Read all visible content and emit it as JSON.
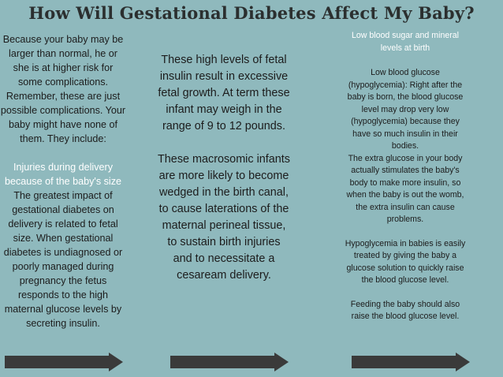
{
  "title": "How Will Gestational Diabetes Affect My Baby?",
  "column1": {
    "intro": "Because your baby may be larger than normal, he or she is at higher risk for some complications. Remember, these are just possible complications. Your baby might have none of them. They include:",
    "heading": "Injuries during delivery because of the baby's size",
    "body": "The greatest impact of gestational diabetes on delivery is related to fetal size. When gestational diabetes is undiagnosed or poorly managed during pregnancy the fetus responds to the high maternal glucose levels by secreting insulin."
  },
  "column2": {
    "para1": "These high levels of fetal insulin result in excessive fetal growth. At term these infant may weigh in the range of 9 to 12 pounds.",
    "para2": "These macrosomic infants are more likely to become wedged in the birth canal, to cause laterations of the maternal perineal tissue, to sustain birth injuries and to necessitate a cesaream delivery."
  },
  "column3": {
    "heading": "Low blood sugar and mineral levels at birth",
    "para1": "Low blood glucose (hypoglycemia): Right after the baby is born, the blood glucose level may drop very low (hypoglycemia) because they have so much insulin in their bodies.",
    "para2": "The extra glucose in your body actually stimulates the baby's body to make more insulin, so when the baby is out the womb, the extra insulin can cause problems.",
    "para3": "Hypoglycemia in babies is easily treated by giving the baby a glucose solution to quickly raise the blood glucose level.",
    "para4": "Feeding the baby should also raise the blood glucose level."
  },
  "colors": {
    "background": "#8fb9bd",
    "arrow": "#3a3a3a",
    "highlight": "#ffffff"
  },
  "icons": [
    "arrow-right-icon"
  ]
}
